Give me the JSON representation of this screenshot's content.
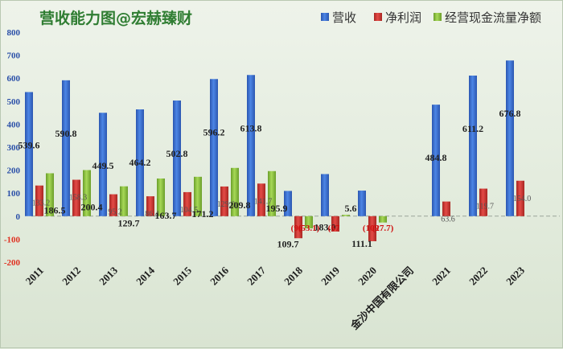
{
  "chart_data": {
    "type": "bar",
    "title": "营收能力图@宏赫臻财",
    "categories": [
      "2011",
      "2012",
      "2013",
      "2014",
      "2015",
      "2016",
      "2017",
      "2018",
      "2019",
      "2020",
      "金沙中国有限公司",
      "2021",
      "2022",
      "2023"
    ],
    "series": [
      {
        "name": "营收",
        "color": "#3a6fd0",
        "values": [
          539.6,
          590.8,
          449.5,
          464.2,
          502.8,
          596.2,
          613.8,
          109.7,
          183.0,
          111.1,
          null,
          484.8,
          611.2,
          676.8
        ],
        "labels": [
          "539.6",
          "590.8",
          "449.5",
          "464.2",
          "502.8",
          "596.2",
          "613.8",
          "109.7",
          "183.0",
          "111.1",
          "",
          "484.8",
          "611.2",
          "676.8"
        ]
      },
      {
        "name": "净利润",
        "color": "#d83a36",
        "values": [
          133.2,
          158.3,
          95.2,
          86.4,
          104.5,
          129.0,
          141.7,
          -96.0,
          -67.0,
          -109.0,
          null,
          63.6,
          119.7,
          154.0
        ],
        "labels": [
          "133.2",
          "158.3",
          "95.2",
          "86.4",
          "104.5",
          "129.0",
          "141.7",
          "(96",
          "(67",
          "(109",
          "",
          "63.6",
          "119.7",
          "154.0"
        ]
      },
      {
        "name": "经营现金流量净额",
        "color": "#8dc63f",
        "values": [
          186.5,
          200.4,
          129.7,
          163.7,
          171.2,
          209.8,
          195.9,
          -53.1,
          5.6,
          -27.7,
          null,
          null,
          null,
          null
        ],
        "labels": [
          "186.5",
          "200.4",
          "129.7",
          "163.7",
          "171.2",
          "209.8",
          "195.9",
          "(53.1)",
          "5.6",
          "(27.7)",
          "",
          "",
          "",
          ""
        ]
      }
    ],
    "yticks": [
      "800",
      "700",
      "600",
      "500",
      "400",
      "300",
      "200",
      "100",
      "0",
      "-100",
      "-200"
    ],
    "ylim": [
      -200,
      800
    ],
    "grid": false,
    "legend": "top-right"
  }
}
